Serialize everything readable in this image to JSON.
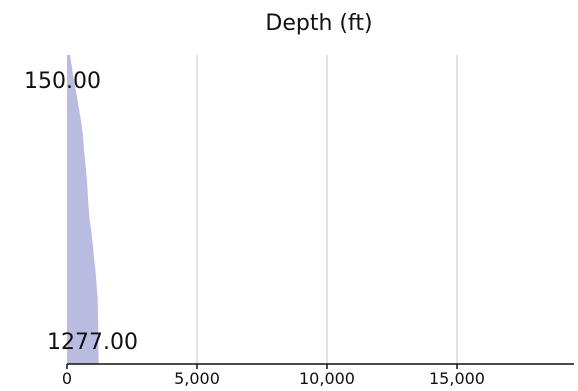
{
  "chart_data": {
    "type": "area",
    "title": "Depth (ft)",
    "xlabel": "",
    "ylabel": "",
    "xlim": [
      0,
      19500
    ],
    "x_ticks": [
      0,
      5000,
      10000,
      15000
    ],
    "x_tick_labels": [
      "0",
      "5,000",
      "10,000",
      "15,000"
    ],
    "grid": "vertical",
    "depth_range": {
      "top": 150,
      "bottom": 1277
    },
    "depth_labels": {
      "top": "150.00",
      "bottom": "1277.00"
    },
    "series": [
      {
        "color": "#b9bbe0",
        "points": [
          {
            "depth": 150,
            "value": 120
          },
          {
            "depth": 190,
            "value": 180
          },
          {
            "depth": 240,
            "value": 260
          },
          {
            "depth": 290,
            "value": 360
          },
          {
            "depth": 340,
            "value": 450
          },
          {
            "depth": 390,
            "value": 540
          },
          {
            "depth": 440,
            "value": 610
          },
          {
            "depth": 490,
            "value": 650
          },
          {
            "depth": 540,
            "value": 700
          },
          {
            "depth": 590,
            "value": 750
          },
          {
            "depth": 640,
            "value": 790
          },
          {
            "depth": 690,
            "value": 820
          },
          {
            "depth": 740,
            "value": 860
          },
          {
            "depth": 790,
            "value": 930
          },
          {
            "depth": 840,
            "value": 990
          },
          {
            "depth": 890,
            "value": 1040
          },
          {
            "depth": 940,
            "value": 1100
          },
          {
            "depth": 990,
            "value": 1140
          },
          {
            "depth": 1040,
            "value": 1180
          },
          {
            "depth": 1090,
            "value": 1190
          },
          {
            "depth": 1140,
            "value": 1200
          },
          {
            "depth": 1190,
            "value": 1205
          },
          {
            "depth": 1240,
            "value": 1210
          },
          {
            "depth": 1277,
            "value": 1215
          }
        ]
      }
    ]
  }
}
